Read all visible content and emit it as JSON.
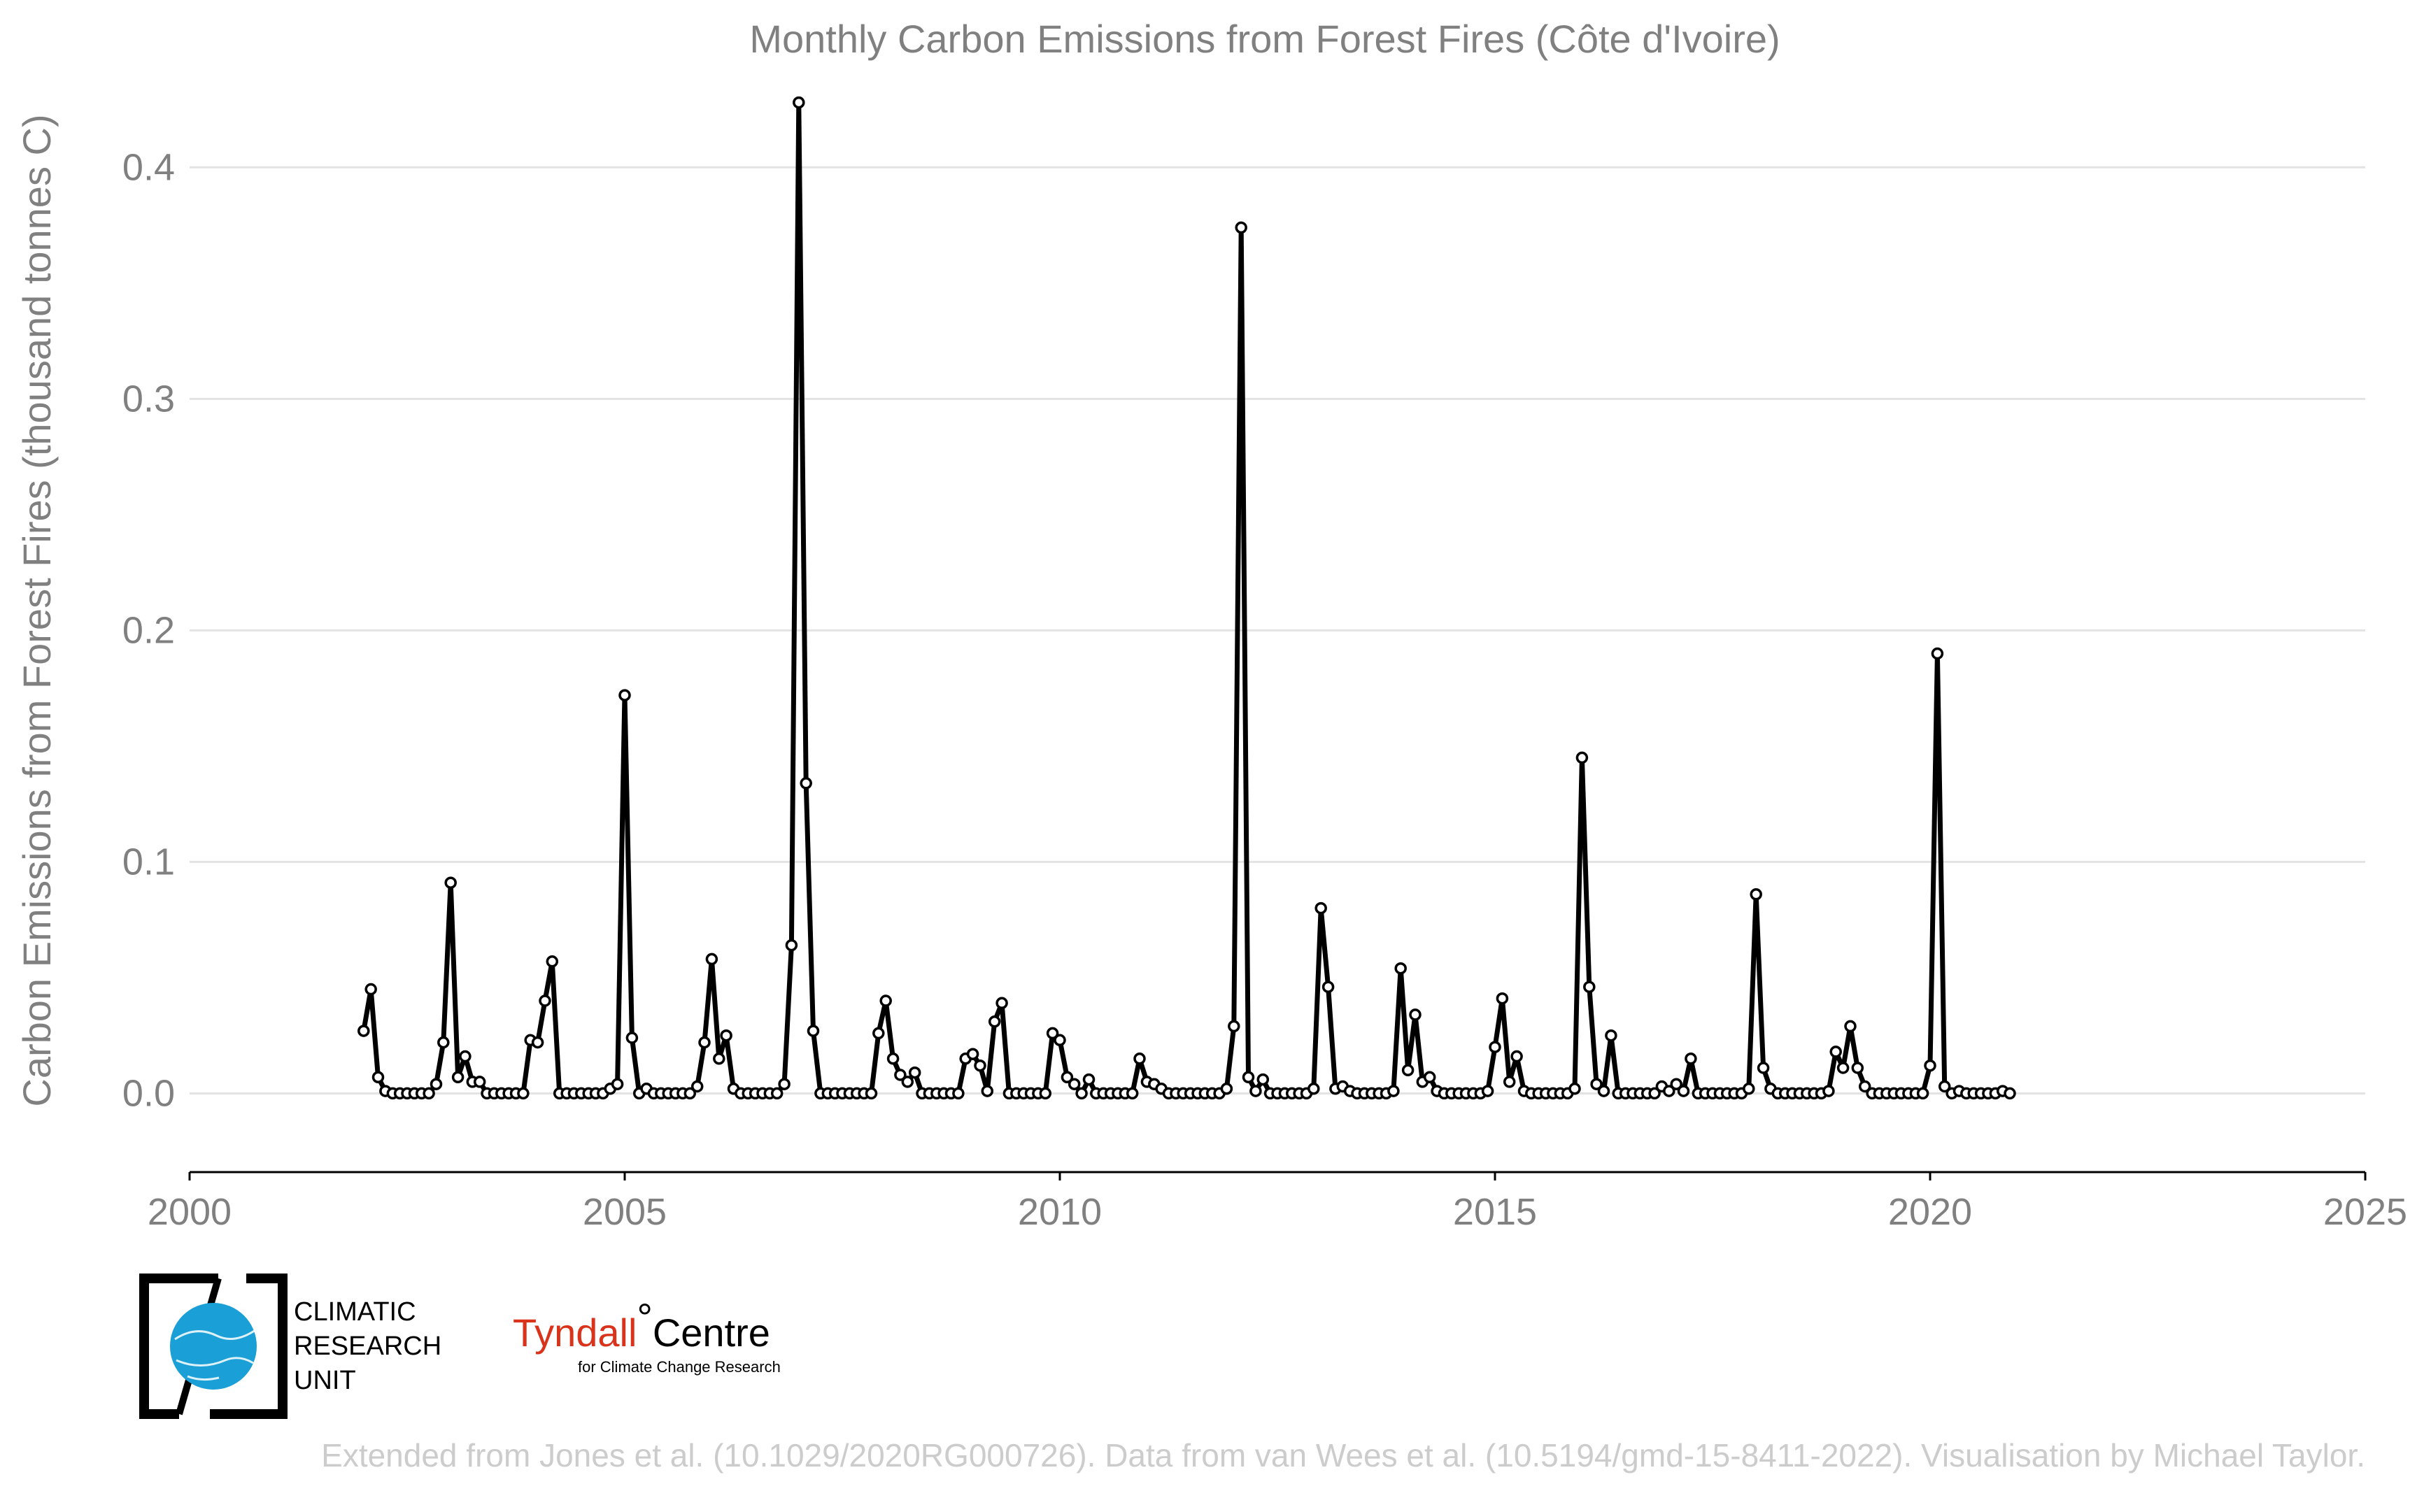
{
  "chart_data": {
    "type": "line",
    "title": "Monthly Carbon Emissions from Forest Fires (Côte d'Ivoire)",
    "ylabel": "Carbon Emissions from Forest Fires (thousand tonnes C)",
    "xlabel": "",
    "xlim": [
      2000,
      2025
    ],
    "ylim": [
      -0.034,
      0.43
    ],
    "x_ticks": [
      "2000",
      "2005",
      "2010",
      "2015",
      "2020",
      "2025"
    ],
    "y_ticks": [
      "0.0",
      "0.1",
      "0.2",
      "0.3",
      "0.4"
    ],
    "grid": "horizontal",
    "legend": "none",
    "series": [
      {
        "x_start": "2002-01",
        "frequency": "monthly",
        "values": [
          0.027,
          0.045,
          0.007,
          0.001,
          0.0,
          0.0,
          0.0,
          0.0,
          0.0,
          0.0,
          0.004,
          0.022,
          0.091,
          0.007,
          0.016,
          0.005,
          0.005,
          0.0,
          0.0,
          0.0,
          0.0,
          0.0,
          0.0,
          0.023,
          0.022,
          0.04,
          0.057,
          0.0,
          0.0,
          0.0,
          0.0,
          0.0,
          0.0,
          0.0,
          0.002,
          0.004,
          0.172,
          0.024,
          0.0,
          0.002,
          0.0,
          0.0,
          0.0,
          0.0,
          0.0,
          0.0,
          0.003,
          0.022,
          0.058,
          0.015,
          0.025,
          0.002,
          0.0,
          0.0,
          0.0,
          0.0,
          0.0,
          0.0,
          0.004,
          0.064,
          0.428,
          0.134,
          0.027,
          0.0,
          0.0,
          0.0,
          0.0,
          0.0,
          0.0,
          0.0,
          0.0,
          0.026,
          0.04,
          0.015,
          0.008,
          0.005,
          0.009,
          0.0,
          0.0,
          0.0,
          0.0,
          0.0,
          0.0,
          0.015,
          0.017,
          0.012,
          0.001,
          0.031,
          0.039,
          0.0,
          0.0,
          0.0,
          0.0,
          0.0,
          0.0,
          0.026,
          0.023,
          0.007,
          0.004,
          0.0,
          0.006,
          0.0,
          0.0,
          0.0,
          0.0,
          0.0,
          0.0,
          0.015,
          0.005,
          0.004,
          0.002,
          0.0,
          0.0,
          0.0,
          0.0,
          0.0,
          0.0,
          0.0,
          0.0,
          0.002,
          0.029,
          0.374,
          0.007,
          0.001,
          0.006,
          0.0,
          0.0,
          0.0,
          0.0,
          0.0,
          0.0,
          0.002,
          0.08,
          0.046,
          0.002,
          0.003,
          0.001,
          0.0,
          0.0,
          0.0,
          0.0,
          0.0,
          0.001,
          0.054,
          0.01,
          0.034,
          0.005,
          0.007,
          0.001,
          0.0,
          0.0,
          0.0,
          0.0,
          0.0,
          0.0,
          0.001,
          0.02,
          0.041,
          0.005,
          0.016,
          0.001,
          0.0,
          0.0,
          0.0,
          0.0,
          0.0,
          0.0,
          0.002,
          0.145,
          0.046,
          0.004,
          0.001,
          0.025,
          0.0,
          0.0,
          0.0,
          0.0,
          0.0,
          0.0,
          0.003,
          0.001,
          0.004,
          0.001,
          0.015,
          0.0,
          0.0,
          0.0,
          0.0,
          0.0,
          0.0,
          0.0,
          0.002,
          0.086,
          0.011,
          0.002,
          0.0,
          0.0,
          0.0,
          0.0,
          0.0,
          0.0,
          0.0,
          0.001,
          0.018,
          0.011,
          0.029,
          0.011,
          0.003,
          0.0,
          0.0,
          0.0,
          0.0,
          0.0,
          0.0,
          0.0,
          0.0,
          0.012,
          0.19,
          0.003,
          0.0,
          0.001,
          0.0,
          0.0,
          0.0,
          0.0,
          0.0,
          0.001,
          0.0
        ]
      }
    ]
  },
  "logos": {
    "cru_lines": [
      "CLIMATIC",
      "RESEARCH",
      "UNIT"
    ],
    "tyndall_main": "Tyndall",
    "tyndall_degree": "°",
    "tyndall_centre": "Centre",
    "tyndall_sub": "for Climate Change Research"
  },
  "credit": "Extended from Jones et al. (10.1029/2020RG000726). Data from van Wees et al. (10.5194/gmd-15-8411-2022). Visualisation by Michael Taylor.",
  "colors": {
    "line": "#000000",
    "marker_fill": "#ffffff",
    "grid": "#e3e3e3",
    "text": "#808080",
    "credit": "#cccccc",
    "cru_blue": "#1a9fd6",
    "tyndall_red": "#d9331c"
  }
}
